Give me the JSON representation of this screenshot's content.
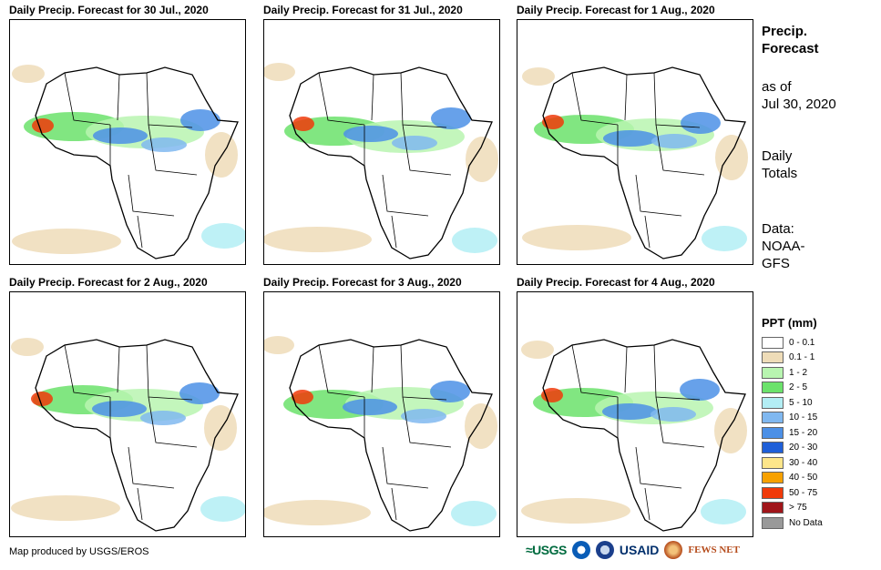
{
  "panels": [
    {
      "title": "Daily Precip. Forecast for 30 Jul., 2020"
    },
    {
      "title": "Daily Precip. Forecast for 31 Jul., 2020"
    },
    {
      "title": "Daily Precip. Forecast for 1 Aug., 2020"
    },
    {
      "title": "Daily Precip. Forecast for 2 Aug., 2020"
    },
    {
      "title": "Daily Precip. Forecast for 3 Aug., 2020"
    },
    {
      "title": "Daily Precip. Forecast for 4 Aug., 2020"
    }
  ],
  "sidebar": {
    "title_line1": "Precip.",
    "title_line2": "Forecast",
    "asof_line1": "as of",
    "asof_line2": "Jul 30, 2020",
    "totals_line1": "Daily",
    "totals_line2": "Totals",
    "data_line1": "Data:",
    "data_line2": "NOAA-",
    "data_line3": "GFS"
  },
  "legend": {
    "title": "PPT (mm)",
    "items": [
      {
        "label": "0 - 0.1",
        "color": "#ffffff"
      },
      {
        "label": "0.1 - 1",
        "color": "#eedcb8"
      },
      {
        "label": "1 - 2",
        "color": "#b8f5b0"
      },
      {
        "label": "2 - 5",
        "color": "#6be26b"
      },
      {
        "label": "5 - 10",
        "color": "#b3eef4"
      },
      {
        "label": "10 - 15",
        "color": "#80b8f0"
      },
      {
        "label": "15 - 20",
        "color": "#4c90e6"
      },
      {
        "label": "20 - 30",
        "color": "#1f5fd8"
      },
      {
        "label": "30 - 40",
        "color": "#fde68a"
      },
      {
        "label": "40 - 50",
        "color": "#f7a100"
      },
      {
        "label": "50 - 75",
        "color": "#f03a0a"
      },
      {
        "label": "> 75",
        "color": "#a0151a"
      },
      {
        "label": "No Data",
        "color": "#999999"
      }
    ]
  },
  "footer": {
    "credit": "Map produced by USGS/EROS",
    "logos": {
      "usgs": "≈USGS",
      "usaid": "USAID",
      "fews": "FEWS NET"
    }
  }
}
